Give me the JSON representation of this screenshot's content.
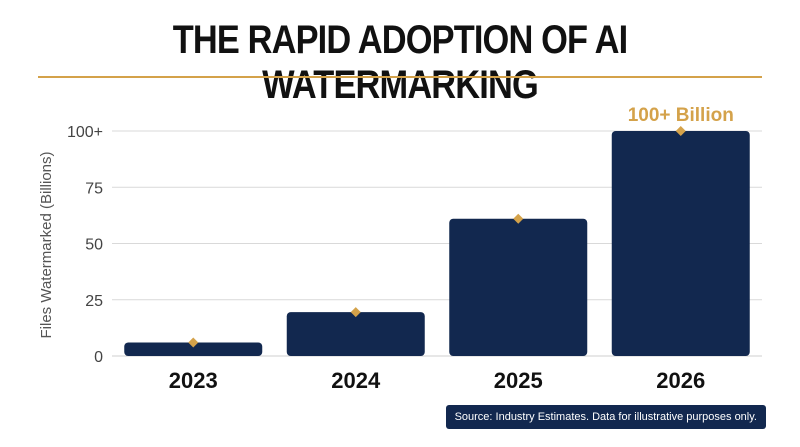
{
  "title": "THE RAPID ADOPTION OF AI WATERMARKING",
  "source_note": "Source: Industry Estimates. Data for illustrative purposes only.",
  "colors": {
    "bar": "#12284f",
    "accent": "#d4a24a",
    "grid": "#d9d9d9",
    "text": "#111111"
  },
  "chart_data": {
    "type": "bar",
    "categories": [
      "2023",
      "2024",
      "2025",
      "2026"
    ],
    "values": [
      6,
      19.5,
      61,
      100
    ],
    "ylabel": "Files Watermarked (Billions)",
    "xlabel": "",
    "ylim": [
      0,
      100
    ],
    "yticks": [
      0,
      25,
      50,
      75,
      100
    ],
    "ytick_labels": [
      "0",
      "25",
      "50",
      "75",
      "100+"
    ],
    "grid": true,
    "markers": "diamond at top of each bar",
    "annotation": {
      "category": "2026",
      "text": "100+ Billion"
    }
  }
}
